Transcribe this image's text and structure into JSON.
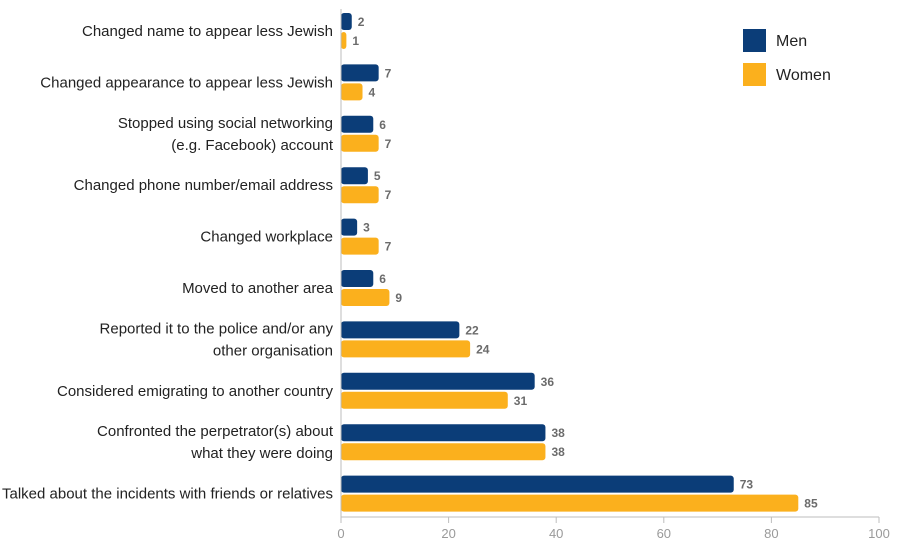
{
  "chart_data": {
    "type": "bar",
    "orientation": "horizontal",
    "categories": [
      [
        "Changed name to appear less Jewish"
      ],
      [
        "Changed appearance to appear less Jewish"
      ],
      [
        "Stopped using social networking",
        "(e.g. Facebook) account"
      ],
      [
        "Changed phone number/email address"
      ],
      [
        "Changed workplace"
      ],
      [
        "Moved to another area"
      ],
      [
        "Reported it to the police and/or any",
        "other organisation"
      ],
      [
        "Considered emigrating to another country"
      ],
      [
        "Confronted the perpetrator(s) about",
        "what they were doing"
      ],
      [
        "Talked about the incidents with friends or relatives"
      ]
    ],
    "series": [
      {
        "name": "Men",
        "color": "#0b3d78",
        "values": [
          2,
          7,
          6,
          5,
          3,
          6,
          22,
          36,
          38,
          73
        ]
      },
      {
        "name": "Women",
        "color": "#fbb01d",
        "values": [
          1,
          4,
          7,
          7,
          7,
          9,
          24,
          31,
          38,
          85
        ]
      }
    ],
    "xlim": [
      0,
      100
    ],
    "xticks": [
      0,
      20,
      40,
      60,
      80,
      100
    ],
    "legend_position": "top-right",
    "grid": false
  }
}
